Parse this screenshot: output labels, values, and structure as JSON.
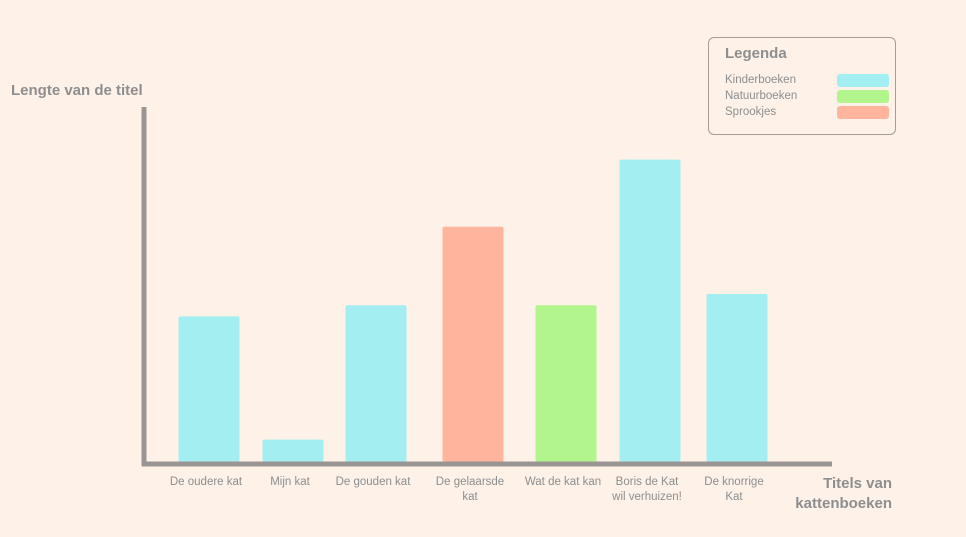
{
  "chart_data": {
    "type": "bar",
    "categories": [
      "De oudere kat",
      "Mijn kat",
      "De gouden kat",
      "De gelaarsde kat",
      "Wat de kat kan",
      "Boris de Kat wil verhuizen!",
      "De knorrige Kat"
    ],
    "category_lines": [
      [
        "De oudere kat"
      ],
      [
        "Mijn kat"
      ],
      [
        "De gouden kat"
      ],
      [
        "De gelaarsde",
        "kat"
      ],
      [
        "Wat de kat kan"
      ],
      [
        "Boris de Kat",
        "wil verhuizen!"
      ],
      [
        "De knorrige",
        "Kat"
      ]
    ],
    "values": [
      13,
      2,
      14,
      21,
      14,
      27,
      15
    ],
    "series_for_category": [
      "Kinderboeken",
      "Kinderboeken",
      "Kinderboeken",
      "Sprookjes",
      "Natuurboeken",
      "Kinderboeken",
      "Kinderboeken"
    ],
    "xlabel": "Titels van kattenboeken",
    "ylabel": "Lengte van de titel",
    "grid": false,
    "axis_ticks_shown": false
  },
  "legend": {
    "title": "Legenda",
    "placement": "top-right",
    "items": [
      {
        "label": "Kinderboeken",
        "color": "#a3eef0"
      },
      {
        "label": "Natuurboeken",
        "color": "#b2f58c"
      },
      {
        "label": "Sprookjes",
        "color": "#ffb49e"
      }
    ]
  },
  "colors": {
    "background": "#fdf1e8",
    "axis": "#9a9593",
    "text": "#8e8e8e"
  }
}
